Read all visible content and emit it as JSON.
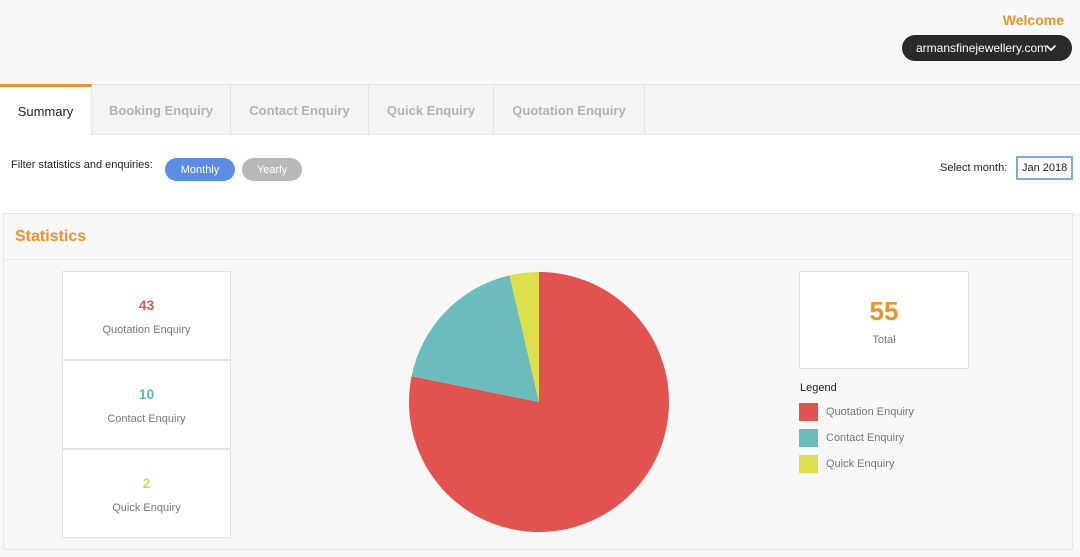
{
  "header": {
    "welcome": "Welcome",
    "account": "armansfinejewellery.com",
    "account_icon": "chevron-down-icon"
  },
  "tabs": [
    {
      "label": "Summary",
      "active": true
    },
    {
      "label": "Booking Enquiry",
      "active": false
    },
    {
      "label": "Contact Enquiry",
      "active": false
    },
    {
      "label": "Quick Enquiry",
      "active": false
    },
    {
      "label": "Quotation Enquiry",
      "active": false
    }
  ],
  "filter": {
    "label": "Filter statistics and enquiries:",
    "monthly": "Monthly",
    "yearly": "Yearly",
    "month_label": "Select month:",
    "month_value": "Jan 2018"
  },
  "statistics": {
    "title": "Statistics",
    "boxes": [
      {
        "value": "43",
        "label": "Quotation Enquiry",
        "color": "#e2534f"
      },
      {
        "value": "10",
        "label": "Contact Enquiry",
        "color": "#5fb8bd"
      },
      {
        "value": "2",
        "label": "Quick Enquiry",
        "color": "#d6dc46"
      }
    ],
    "total": {
      "value": "55",
      "label": "Total"
    },
    "legend_title": "Legend",
    "legend": [
      {
        "label": "Quotation Enquiry",
        "color": "#e2534f"
      },
      {
        "label": "Contact Enquiry",
        "color": "#6bbcbd"
      },
      {
        "label": "Quick Enquiry",
        "color": "#dde04b"
      }
    ]
  },
  "colors": {
    "accent": "#f0922b",
    "monthly": "#5b8de3",
    "yearly": "#b8b8b8"
  },
  "chart_data": {
    "type": "pie",
    "categories": [
      "Quotation Enquiry",
      "Contact Enquiry",
      "Quick Enquiry"
    ],
    "values": [
      43,
      10,
      2
    ],
    "colors": [
      "#e2534f",
      "#6bbcbd",
      "#dde04b"
    ]
  }
}
